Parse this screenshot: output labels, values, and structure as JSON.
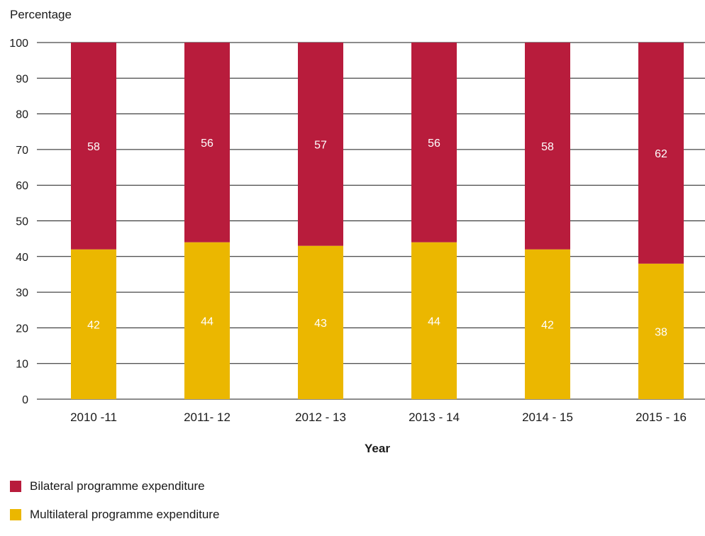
{
  "chart_data": {
    "type": "bar",
    "stacked": true,
    "ylabel": "Percentage",
    "xlabel": "Year",
    "ylim": [
      0,
      100
    ],
    "yticks": [
      0,
      10,
      20,
      30,
      40,
      50,
      60,
      70,
      80,
      90,
      100
    ],
    "categories": [
      "2010 -11",
      "2011- 12",
      "2012 - 13",
      "2013 - 14",
      "2014 - 15",
      "2015 - 16"
    ],
    "series": [
      {
        "name": "Multilateral programme expenditure",
        "color": "#EBB700",
        "values": [
          42,
          44,
          43,
          44,
          42,
          38
        ]
      },
      {
        "name": "Bilateral programme expenditure",
        "color": "#B81C3C",
        "values": [
          58,
          56,
          57,
          56,
          58,
          62
        ]
      }
    ],
    "grid": true,
    "legend_position": "bottom-left"
  },
  "legend": [
    {
      "label": "Bilateral programme expenditure",
      "color": "#B81C3C"
    },
    {
      "label": "Multilateral programme expenditure",
      "color": "#EBB700"
    }
  ]
}
